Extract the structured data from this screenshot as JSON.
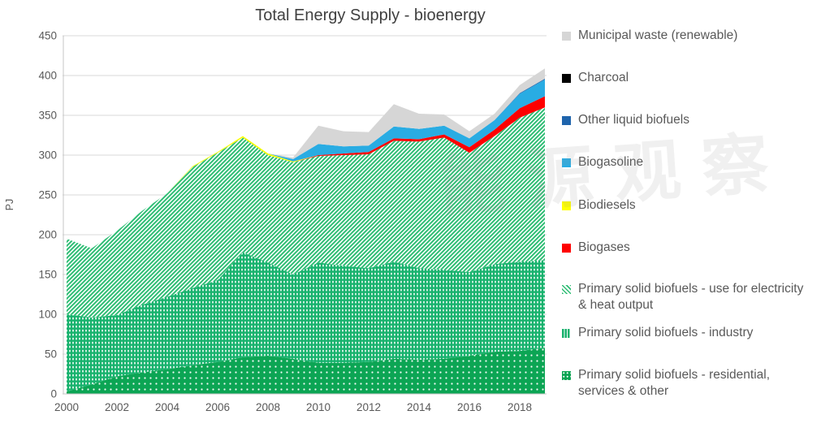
{
  "title": "Total Energy Supply - bioenergy",
  "watermark": {
    "text": "能源观察"
  },
  "colors": {
    "title_text": "#404040",
    "axis_text": "#595959",
    "gridline": "#d9d9d9",
    "axis_line": "#c6c6c6",
    "legend_text": "#595959"
  },
  "chart_data": {
    "type": "area",
    "stacked": true,
    "title": "Total Energy Supply - bioenergy",
    "xlabel": "",
    "ylabel": "PJ",
    "ylim": [
      0,
      450
    ],
    "ytick_step": 50,
    "grid": "horizontal",
    "legend_position": "right",
    "years": [
      2000,
      2001,
      2002,
      2003,
      2004,
      2005,
      2006,
      2007,
      2008,
      2009,
      2010,
      2011,
      2012,
      2013,
      2014,
      2015,
      2016,
      2017,
      2018,
      2019
    ],
    "x_tick_labels": [
      "2000",
      "2002",
      "2004",
      "2006",
      "2008",
      "2010",
      "2012",
      "2014",
      "2016",
      "2018"
    ],
    "unit": "PJ",
    "series_bottom_to_top": [
      {
        "name": "Primary solid biofuels - residential, services & other",
        "color": "#0ca554",
        "pattern": "dots-sparse",
        "values": [
          3,
          12,
          22,
          27,
          31,
          36,
          40,
          46,
          48,
          44,
          39,
          39,
          40,
          44,
          43,
          44,
          48,
          53,
          54,
          58
        ]
      },
      {
        "name": "Primary solid biofuels - industry",
        "color": "#17b26d",
        "pattern": "vertical-dashes",
        "values": [
          97,
          84,
          77,
          85,
          91,
          97,
          103,
          132,
          117,
          106,
          126,
          122,
          118,
          122,
          115,
          112,
          105,
          110,
          112,
          110
        ]
      },
      {
        "name": "Primary solid biofuels - use for electricity & heat output",
        "color": "#2ebd74",
        "pattern": "diagonal-hatch",
        "values": [
          95,
          87,
          106,
          118,
          130,
          152,
          160,
          144,
          135,
          141,
          134,
          139,
          143,
          152,
          159,
          166,
          150,
          161,
          181,
          192
        ]
      },
      {
        "name": "Biogases",
        "color": "#fe0000",
        "pattern": "solid",
        "values": [
          0,
          0,
          0,
          0,
          0,
          0,
          0,
          0,
          0,
          0,
          1,
          2,
          3,
          3,
          3,
          4,
          7,
          8,
          12,
          14
        ]
      },
      {
        "name": "Biodiesels",
        "color": "#ffff00",
        "pattern": "solid",
        "values": [
          0,
          0,
          0,
          0,
          0,
          1,
          1,
          2,
          2,
          1,
          0,
          0,
          0,
          0,
          0,
          0,
          0,
          0,
          0,
          0
        ]
      },
      {
        "name": "Biogasoline",
        "color": "#29ace3",
        "pattern": "solid",
        "values": [
          0,
          0,
          0,
          0,
          0,
          0,
          0,
          0,
          0,
          3,
          14,
          9,
          8,
          15,
          13,
          11,
          11,
          12,
          18,
          21
        ]
      },
      {
        "name": "Other liquid biofuels",
        "color": "#1f64ac",
        "pattern": "solid",
        "values": [
          0,
          0,
          0,
          0,
          0,
          0,
          0,
          0,
          0,
          0,
          0,
          0,
          0,
          0,
          0,
          0,
          0,
          0,
          1,
          1
        ]
      },
      {
        "name": "Charcoal",
        "color": "#000000",
        "pattern": "solid",
        "values": [
          0,
          0,
          0,
          0,
          0,
          0,
          0,
          0,
          0,
          0,
          0,
          0,
          0,
          0,
          0,
          0,
          0,
          0,
          0,
          0
        ]
      },
      {
        "name": "Municipal waste (renewable)",
        "color": "#d6d6d6",
        "pattern": "solid",
        "values": [
          0,
          0,
          0,
          0,
          0,
          0,
          0,
          0,
          0,
          2,
          23,
          19,
          17,
          28,
          19,
          14,
          9,
          8,
          10,
          13
        ]
      }
    ],
    "legend_order_top_to_bottom": [
      "Municipal waste (renewable)",
      "Charcoal",
      "Other liquid biofuels",
      "Biogasoline",
      "Biodiesels",
      "Biogases",
      "Primary solid biofuels - use for electricity & heat output",
      "Primary solid biofuels - industry",
      "Primary solid biofuels - residential, services & other"
    ]
  }
}
